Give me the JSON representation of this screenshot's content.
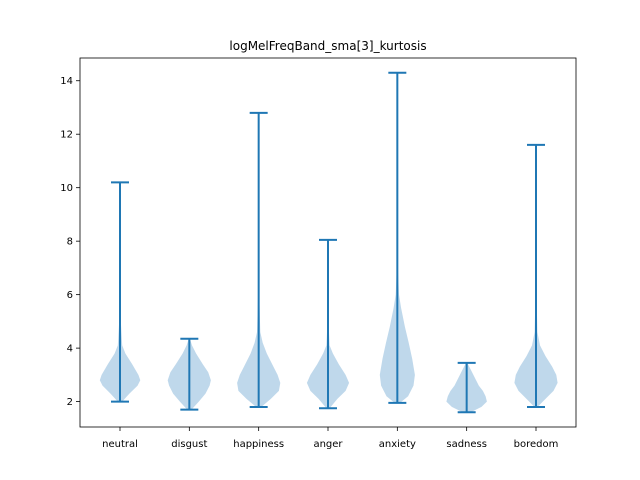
{
  "chart_data": {
    "type": "violin",
    "title": "logMelFreqBand_sma[3]_kurtosis",
    "xlabel": "",
    "ylabel": "",
    "ylim": [
      1.05,
      14.85
    ],
    "y_ticks": [
      2,
      4,
      6,
      8,
      10,
      12,
      14
    ],
    "categories": [
      "neutral",
      "disgust",
      "happiness",
      "anger",
      "anxiety",
      "sadness",
      "boredom"
    ],
    "series": [
      {
        "min": 2.0,
        "max": 10.2,
        "density_y": [
          2.0,
          2.3,
          2.6,
          2.8,
          3.0,
          3.4,
          3.8,
          4.1,
          5.0,
          10.2
        ],
        "density_w": [
          0.08,
          0.35,
          0.65,
          0.75,
          0.68,
          0.45,
          0.2,
          0.08,
          0.03,
          0.01
        ]
      },
      {
        "min": 1.7,
        "max": 4.35,
        "density_y": [
          1.7,
          2.0,
          2.3,
          2.6,
          2.8,
          3.1,
          3.4,
          3.8,
          4.1,
          4.35
        ],
        "density_w": [
          0.08,
          0.35,
          0.6,
          0.75,
          0.8,
          0.7,
          0.5,
          0.25,
          0.1,
          0.02
        ]
      },
      {
        "min": 1.8,
        "max": 12.8,
        "density_y": [
          1.8,
          2.1,
          2.4,
          2.7,
          3.0,
          3.4,
          3.8,
          4.2,
          4.6,
          6.0,
          12.8
        ],
        "density_w": [
          0.1,
          0.45,
          0.75,
          0.8,
          0.7,
          0.5,
          0.3,
          0.15,
          0.06,
          0.02,
          0.01
        ]
      },
      {
        "min": 1.75,
        "max": 8.05,
        "density_y": [
          1.75,
          2.1,
          2.4,
          2.7,
          3.0,
          3.4,
          3.8,
          4.1,
          5.0,
          8.05
        ],
        "density_w": [
          0.06,
          0.35,
          0.65,
          0.78,
          0.65,
          0.4,
          0.18,
          0.06,
          0.02,
          0.01
        ]
      },
      {
        "min": 1.95,
        "max": 14.3,
        "density_y": [
          1.95,
          2.2,
          2.6,
          3.0,
          3.6,
          4.2,
          4.8,
          5.5,
          6.0,
          7.0,
          14.3
        ],
        "density_w": [
          0.1,
          0.4,
          0.6,
          0.65,
          0.55,
          0.42,
          0.28,
          0.14,
          0.06,
          0.02,
          0.01
        ]
      },
      {
        "min": 1.6,
        "max": 3.45,
        "density_y": [
          1.6,
          1.8,
          2.0,
          2.2,
          2.4,
          2.6,
          2.8,
          3.0,
          3.2,
          3.45
        ],
        "density_w": [
          0.15,
          0.55,
          0.75,
          0.7,
          0.6,
          0.45,
          0.35,
          0.25,
          0.15,
          0.02
        ]
      },
      {
        "min": 1.8,
        "max": 11.6,
        "density_y": [
          1.8,
          2.1,
          2.4,
          2.7,
          3.0,
          3.3,
          3.7,
          4.1,
          4.6,
          6.0,
          11.6
        ],
        "density_w": [
          0.06,
          0.35,
          0.65,
          0.8,
          0.75,
          0.6,
          0.35,
          0.15,
          0.05,
          0.02,
          0.01
        ]
      }
    ]
  }
}
